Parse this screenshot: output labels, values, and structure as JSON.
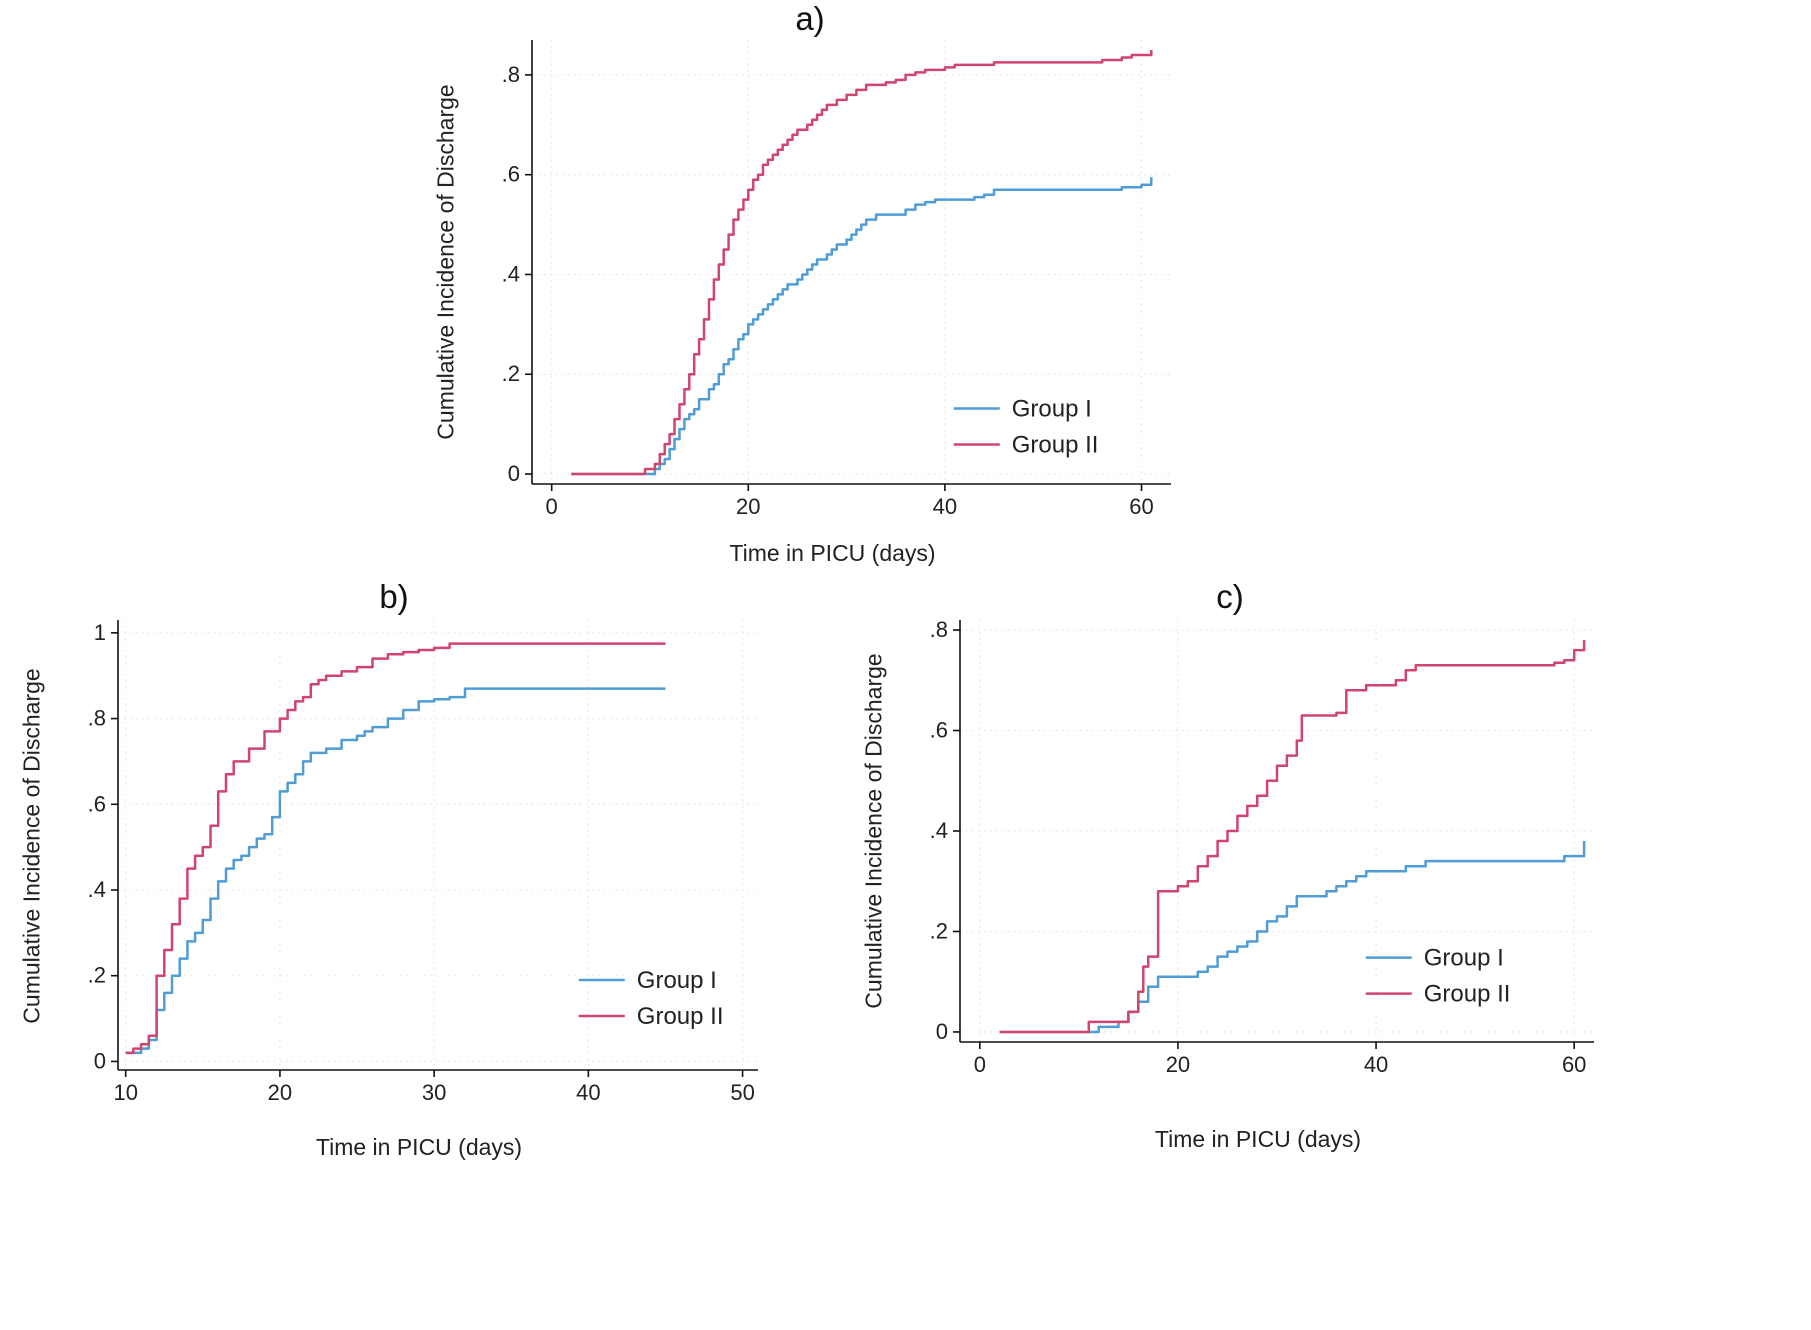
{
  "colors": {
    "group1": "#4f9cd6",
    "group2": "#d0446e",
    "grid": "#f2dde7",
    "axis": "#111111",
    "text": "#222222"
  },
  "chart_data": [
    {
      "type": "line",
      "panel_label": "a)",
      "xlabel": "Time in PICU (days)",
      "ylabel": "Cumulative Incidence of Discharge",
      "xlim": [
        -2,
        63
      ],
      "ylim": [
        -0.02,
        0.87
      ],
      "xticks": [
        0,
        20,
        40,
        60
      ],
      "xtick_labels": [
        "0",
        "20",
        "40",
        "60"
      ],
      "yticks": [
        0,
        0.2,
        0.4,
        0.6,
        0.8
      ],
      "ytick_labels": [
        "0",
        ".2",
        ".4",
        ".6",
        ".8"
      ],
      "legend": {
        "fx": 0.66,
        "fy": 0.83
      },
      "series": [
        {
          "name": "Group I",
          "color": "group1",
          "points": [
            [
              2,
              0
            ],
            [
              10.5,
              0.01
            ],
            [
              11,
              0.02
            ],
            [
              11.5,
              0.03
            ],
            [
              12,
              0.05
            ],
            [
              12.5,
              0.07
            ],
            [
              13,
              0.09
            ],
            [
              13.5,
              0.11
            ],
            [
              14,
              0.12
            ],
            [
              14.5,
              0.13
            ],
            [
              15,
              0.15
            ],
            [
              16,
              0.17
            ],
            [
              16.5,
              0.18
            ],
            [
              17,
              0.2
            ],
            [
              17.5,
              0.22
            ],
            [
              18,
              0.23
            ],
            [
              18.5,
              0.25
            ],
            [
              19,
              0.27
            ],
            [
              19.5,
              0.28
            ],
            [
              20,
              0.3
            ],
            [
              20.5,
              0.31
            ],
            [
              21,
              0.32
            ],
            [
              21.5,
              0.33
            ],
            [
              22,
              0.34
            ],
            [
              22.5,
              0.35
            ],
            [
              23,
              0.36
            ],
            [
              23.5,
              0.37
            ],
            [
              24,
              0.38
            ],
            [
              25,
              0.39
            ],
            [
              25.5,
              0.4
            ],
            [
              26,
              0.41
            ],
            [
              26.5,
              0.42
            ],
            [
              27,
              0.43
            ],
            [
              28,
              0.44
            ],
            [
              28.5,
              0.45
            ],
            [
              29,
              0.46
            ],
            [
              30,
              0.47
            ],
            [
              30.5,
              0.48
            ],
            [
              31,
              0.49
            ],
            [
              31.5,
              0.5
            ],
            [
              32,
              0.51
            ],
            [
              33,
              0.52
            ],
            [
              36,
              0.53
            ],
            [
              37,
              0.54
            ],
            [
              38,
              0.545
            ],
            [
              39,
              0.55
            ],
            [
              43,
              0.555
            ],
            [
              44,
              0.56
            ],
            [
              45,
              0.57
            ],
            [
              57,
              0.57
            ],
            [
              58,
              0.575
            ],
            [
              60,
              0.58
            ],
            [
              61,
              0.595
            ]
          ]
        },
        {
          "name": "Group II",
          "color": "group2",
          "points": [
            [
              2,
              0
            ],
            [
              9.5,
              0.01
            ],
            [
              10.5,
              0.02
            ],
            [
              11,
              0.04
            ],
            [
              11.5,
              0.06
            ],
            [
              12,
              0.08
            ],
            [
              12.5,
              0.11
            ],
            [
              13,
              0.14
            ],
            [
              13.5,
              0.17
            ],
            [
              14,
              0.2
            ],
            [
              14.5,
              0.24
            ],
            [
              15,
              0.27
            ],
            [
              15.5,
              0.31
            ],
            [
              16,
              0.35
            ],
            [
              16.5,
              0.39
            ],
            [
              17,
              0.42
            ],
            [
              17.5,
              0.45
            ],
            [
              18,
              0.48
            ],
            [
              18.5,
              0.51
            ],
            [
              19,
              0.53
            ],
            [
              19.5,
              0.55
            ],
            [
              20,
              0.57
            ],
            [
              20.5,
              0.59
            ],
            [
              21,
              0.6
            ],
            [
              21.5,
              0.62
            ],
            [
              22,
              0.63
            ],
            [
              22.5,
              0.64
            ],
            [
              23,
              0.65
            ],
            [
              23.5,
              0.66
            ],
            [
              24,
              0.67
            ],
            [
              24.5,
              0.68
            ],
            [
              25,
              0.69
            ],
            [
              26,
              0.7
            ],
            [
              26.5,
              0.71
            ],
            [
              27,
              0.72
            ],
            [
              27.5,
              0.73
            ],
            [
              28,
              0.74
            ],
            [
              29,
              0.75
            ],
            [
              30,
              0.76
            ],
            [
              31,
              0.77
            ],
            [
              32,
              0.78
            ],
            [
              34,
              0.785
            ],
            [
              35,
              0.79
            ],
            [
              36,
              0.8
            ],
            [
              37,
              0.805
            ],
            [
              38,
              0.81
            ],
            [
              40,
              0.815
            ],
            [
              41,
              0.82
            ],
            [
              45,
              0.825
            ],
            [
              56,
              0.83
            ],
            [
              58,
              0.835
            ],
            [
              59,
              0.84
            ],
            [
              61,
              0.85
            ]
          ]
        }
      ]
    },
    {
      "type": "line",
      "panel_label": "b)",
      "xlabel": "Time in PICU (days)",
      "ylabel": "Cumulative Incidence of Discharge",
      "xlim": [
        9.5,
        51
      ],
      "ylim": [
        -0.02,
        1.03
      ],
      "xticks": [
        10,
        20,
        30,
        40,
        50
      ],
      "xtick_labels": [
        "10",
        "20",
        "30",
        "40",
        "50"
      ],
      "yticks": [
        0,
        0.2,
        0.4,
        0.6,
        0.8,
        1
      ],
      "ytick_labels": [
        "0",
        ".2",
        ".4",
        ".6",
        ".8",
        "1"
      ],
      "legend": {
        "fx": 0.72,
        "fy": 0.8
      },
      "series": [
        {
          "name": "Group I",
          "color": "group1",
          "points": [
            [
              10,
              0.02
            ],
            [
              11,
              0.03
            ],
            [
              11.5,
              0.05
            ],
            [
              12,
              0.12
            ],
            [
              12.5,
              0.16
            ],
            [
              13,
              0.2
            ],
            [
              13.5,
              0.24
            ],
            [
              14,
              0.28
            ],
            [
              14.5,
              0.3
            ],
            [
              15,
              0.33
            ],
            [
              15.5,
              0.38
            ],
            [
              16,
              0.42
            ],
            [
              16.5,
              0.45
            ],
            [
              17,
              0.47
            ],
            [
              17.5,
              0.48
            ],
            [
              18,
              0.5
            ],
            [
              18.5,
              0.52
            ],
            [
              19,
              0.53
            ],
            [
              19.5,
              0.57
            ],
            [
              20,
              0.63
            ],
            [
              20.5,
              0.65
            ],
            [
              21,
              0.67
            ],
            [
              21.5,
              0.7
            ],
            [
              22,
              0.72
            ],
            [
              23,
              0.73
            ],
            [
              24,
              0.75
            ],
            [
              25,
              0.76
            ],
            [
              25.5,
              0.77
            ],
            [
              26,
              0.78
            ],
            [
              27,
              0.8
            ],
            [
              28,
              0.82
            ],
            [
              29,
              0.84
            ],
            [
              30,
              0.845
            ],
            [
              31,
              0.85
            ],
            [
              32,
              0.87
            ],
            [
              45,
              0.87
            ]
          ]
        },
        {
          "name": "Group II",
          "color": "group2",
          "points": [
            [
              10,
              0.02
            ],
            [
              10.5,
              0.03
            ],
            [
              11,
              0.04
            ],
            [
              11.5,
              0.06
            ],
            [
              12,
              0.2
            ],
            [
              12.5,
              0.26
            ],
            [
              13,
              0.32
            ],
            [
              13.5,
              0.38
            ],
            [
              14,
              0.45
            ],
            [
              14.5,
              0.48
            ],
            [
              15,
              0.5
            ],
            [
              15.5,
              0.55
            ],
            [
              16,
              0.63
            ],
            [
              16.5,
              0.67
            ],
            [
              17,
              0.7
            ],
            [
              18,
              0.73
            ],
            [
              19,
              0.77
            ],
            [
              20,
              0.8
            ],
            [
              20.5,
              0.82
            ],
            [
              21,
              0.84
            ],
            [
              21.5,
              0.85
            ],
            [
              22,
              0.88
            ],
            [
              22.5,
              0.89
            ],
            [
              23,
              0.9
            ],
            [
              24,
              0.91
            ],
            [
              25,
              0.92
            ],
            [
              26,
              0.94
            ],
            [
              27,
              0.95
            ],
            [
              28,
              0.955
            ],
            [
              29,
              0.96
            ],
            [
              30,
              0.965
            ],
            [
              31,
              0.975
            ],
            [
              45,
              0.975
            ]
          ]
        }
      ]
    },
    {
      "type": "line",
      "panel_label": "c)",
      "xlabel": "Time in PICU (days)",
      "ylabel": "Cumulative Incidence of Discharge",
      "xlim": [
        -2,
        62
      ],
      "ylim": [
        -0.02,
        0.82
      ],
      "xticks": [
        0,
        20,
        40,
        60
      ],
      "xtick_labels": [
        "0",
        "20",
        "40",
        "60"
      ],
      "yticks": [
        0,
        0.2,
        0.4,
        0.6,
        0.8
      ],
      "ytick_labels": [
        "0",
        ".2",
        ".4",
        ".6",
        ".8"
      ],
      "legend": {
        "fx": 0.64,
        "fy": 0.8
      },
      "series": [
        {
          "name": "Group I",
          "color": "group1",
          "points": [
            [
              2,
              0
            ],
            [
              12,
              0.01
            ],
            [
              14,
              0.02
            ],
            [
              15,
              0.04
            ],
            [
              16,
              0.06
            ],
            [
              17,
              0.09
            ],
            [
              18,
              0.11
            ],
            [
              22,
              0.12
            ],
            [
              23,
              0.13
            ],
            [
              24,
              0.15
            ],
            [
              25,
              0.16
            ],
            [
              26,
              0.17
            ],
            [
              27,
              0.18
            ],
            [
              28,
              0.2
            ],
            [
              29,
              0.22
            ],
            [
              30,
              0.23
            ],
            [
              31,
              0.25
            ],
            [
              32,
              0.27
            ],
            [
              35,
              0.28
            ],
            [
              36,
              0.29
            ],
            [
              37,
              0.3
            ],
            [
              38,
              0.31
            ],
            [
              39,
              0.32
            ],
            [
              43,
              0.33
            ],
            [
              45,
              0.34
            ],
            [
              59,
              0.35
            ],
            [
              61,
              0.38
            ]
          ]
        },
        {
          "name": "Group II",
          "color": "group2",
          "points": [
            [
              2,
              0
            ],
            [
              11,
              0.02
            ],
            [
              15,
              0.04
            ],
            [
              16,
              0.08
            ],
            [
              16.5,
              0.13
            ],
            [
              17,
              0.15
            ],
            [
              18,
              0.28
            ],
            [
              20,
              0.29
            ],
            [
              21,
              0.3
            ],
            [
              22,
              0.33
            ],
            [
              23,
              0.35
            ],
            [
              24,
              0.38
            ],
            [
              25,
              0.4
            ],
            [
              26,
              0.43
            ],
            [
              27,
              0.45
            ],
            [
              28,
              0.47
            ],
            [
              29,
              0.5
            ],
            [
              30,
              0.53
            ],
            [
              31,
              0.55
            ],
            [
              32,
              0.58
            ],
            [
              32.5,
              0.63
            ],
            [
              36,
              0.635
            ],
            [
              37,
              0.68
            ],
            [
              39,
              0.69
            ],
            [
              42,
              0.7
            ],
            [
              43,
              0.72
            ],
            [
              44,
              0.73
            ],
            [
              58,
              0.735
            ],
            [
              59,
              0.74
            ],
            [
              60,
              0.76
            ],
            [
              61,
              0.78
            ]
          ]
        }
      ]
    }
  ]
}
